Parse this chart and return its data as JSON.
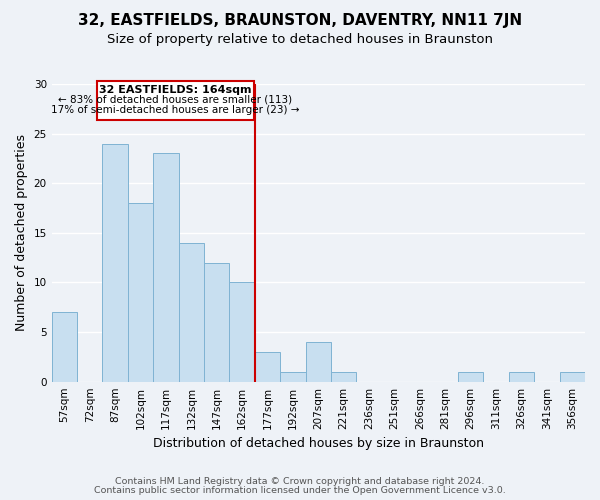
{
  "title": "32, EASTFIELDS, BRAUNSTON, DAVENTRY, NN11 7JN",
  "subtitle": "Size of property relative to detached houses in Braunston",
  "xlabel": "Distribution of detached houses by size in Braunston",
  "ylabel": "Number of detached properties",
  "bar_labels": [
    "57sqm",
    "72sqm",
    "87sqm",
    "102sqm",
    "117sqm",
    "132sqm",
    "147sqm",
    "162sqm",
    "177sqm",
    "192sqm",
    "207sqm",
    "221sqm",
    "236sqm",
    "251sqm",
    "266sqm",
    "281sqm",
    "296sqm",
    "311sqm",
    "326sqm",
    "341sqm",
    "356sqm"
  ],
  "bar_values": [
    7,
    0,
    24,
    18,
    23,
    14,
    12,
    10,
    3,
    1,
    4,
    1,
    0,
    0,
    0,
    0,
    1,
    0,
    1,
    0,
    1
  ],
  "bar_color": "#c8dff0",
  "bar_edge_color": "#7fb3d3",
  "vline_color": "#cc0000",
  "annotation_title": "32 EASTFIELDS: 164sqm",
  "annotation_line1": "← 83% of detached houses are smaller (113)",
  "annotation_line2": "17% of semi-detached houses are larger (23) →",
  "annotation_box_color": "#ffffff",
  "annotation_box_edge": "#cc0000",
  "ylim": [
    0,
    30
  ],
  "yticks": [
    0,
    5,
    10,
    15,
    20,
    25,
    30
  ],
  "footer1": "Contains HM Land Registry data © Crown copyright and database right 2024.",
  "footer2": "Contains public sector information licensed under the Open Government Licence v3.0.",
  "background_color": "#eef2f7",
  "plot_background": "#eef2f7",
  "title_fontsize": 11,
  "subtitle_fontsize": 9.5,
  "axis_label_fontsize": 9,
  "tick_fontsize": 7.5,
  "footer_fontsize": 6.8
}
